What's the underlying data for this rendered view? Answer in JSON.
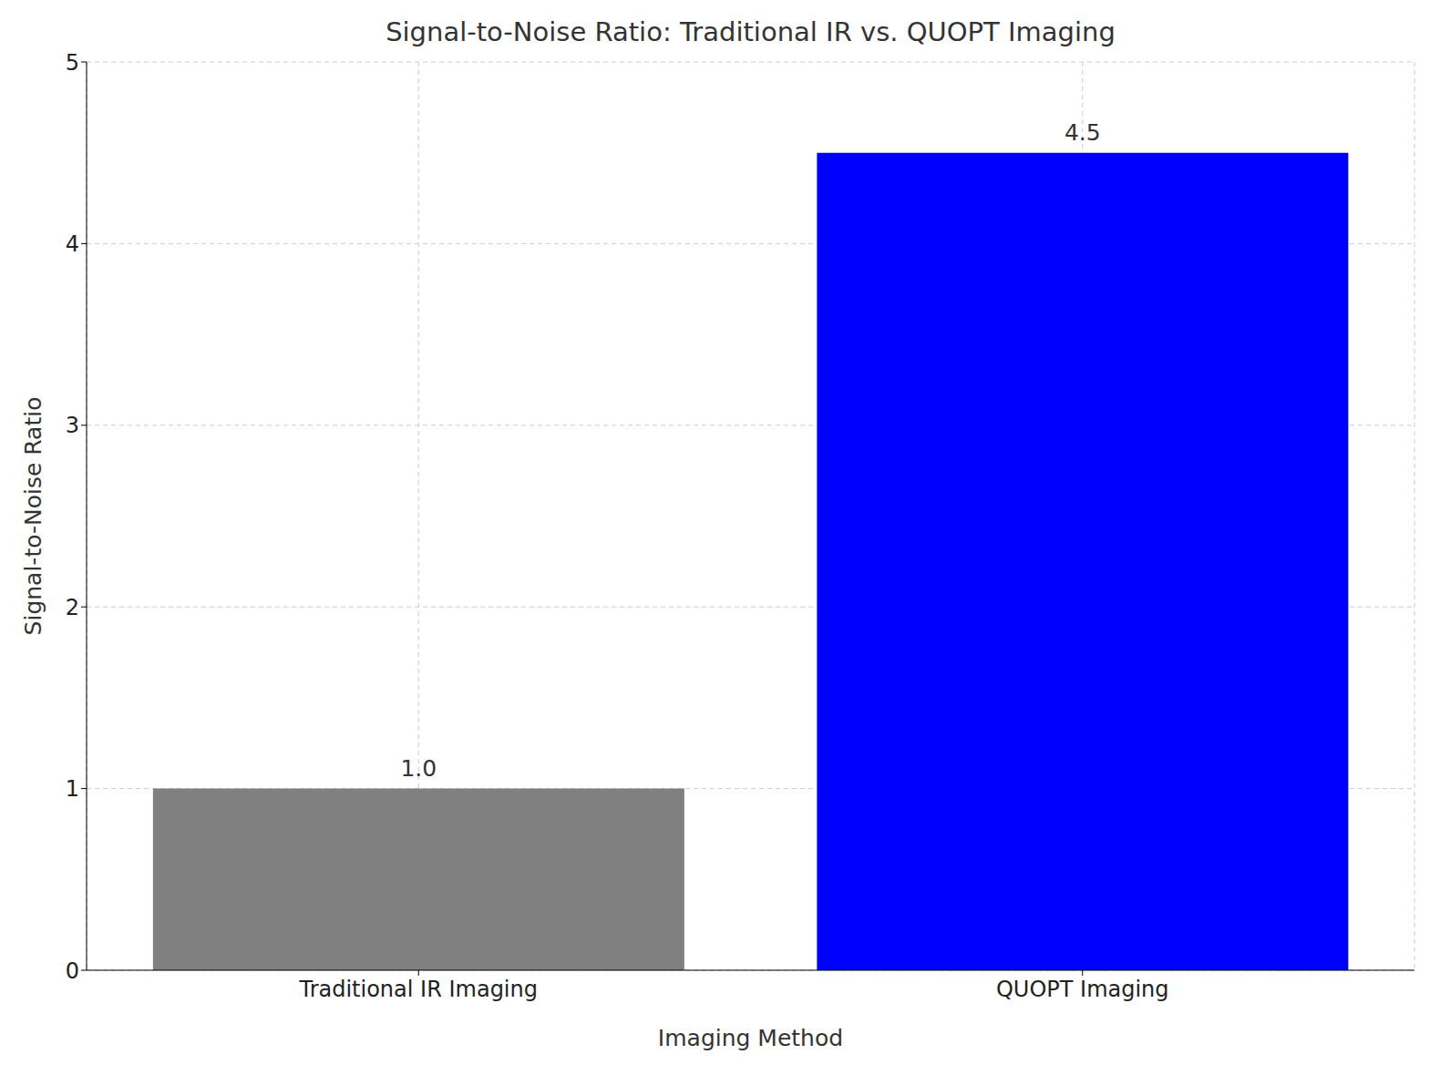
{
  "chart_data": {
    "type": "bar",
    "title": "Signal-to-Noise Ratio: Traditional IR vs. QUOPT Imaging",
    "x_label": "Imaging Method",
    "y_label": "Signal-to-Noise Ratio",
    "categories": [
      "Traditional IR Imaging",
      "QUOPT Imaging"
    ],
    "values": [
      1.0,
      4.5
    ],
    "value_labels": [
      "1.0",
      "4.5"
    ],
    "colors": [
      "#808080",
      "#0000ff"
    ],
    "ylim": [
      0,
      5
    ],
    "yticks": [
      0,
      1,
      2,
      3,
      4,
      5
    ],
    "grid": true,
    "data_labels": true
  }
}
